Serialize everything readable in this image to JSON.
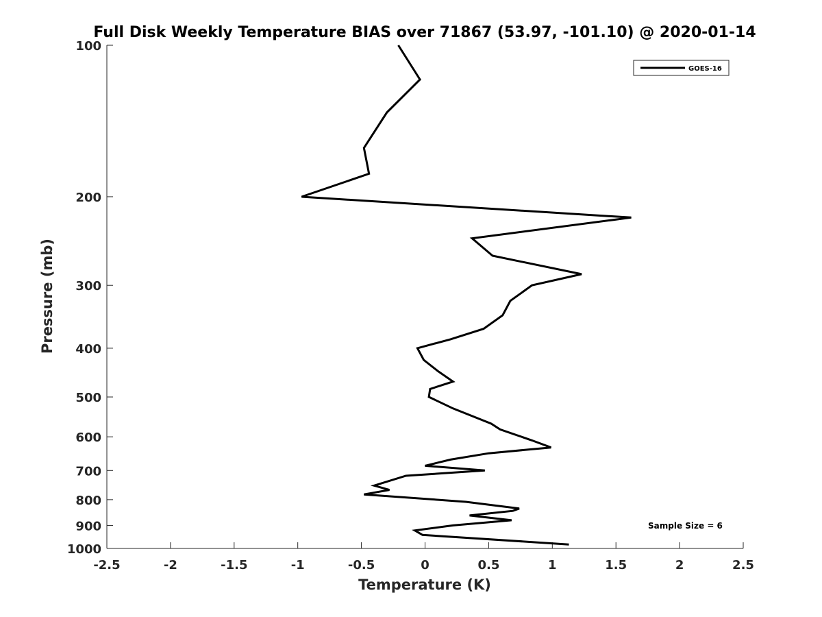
{
  "chart_data": {
    "type": "line",
    "title": "Full Disk Weekly Temperature BIAS over 71867 (53.97, -101.10) @ 2020-01-14",
    "xlabel": "Temperature (K)",
    "ylabel": "Pressure (mb)",
    "xlim": [
      -2.5,
      2.5
    ],
    "ylim": [
      100,
      1000
    ],
    "y_scale": "log",
    "y_reversed": true,
    "grid": false,
    "legend_position": "top-right",
    "x_ticks": [
      {
        "value": -2.5,
        "label": "-2.5"
      },
      {
        "value": -2,
        "label": "-2"
      },
      {
        "value": -1.5,
        "label": "-1.5"
      },
      {
        "value": -1,
        "label": "-1"
      },
      {
        "value": -0.5,
        "label": "-0.5"
      },
      {
        "value": 0,
        "label": "0"
      },
      {
        "value": 0.5,
        "label": "0.5"
      },
      {
        "value": 1,
        "label": "1"
      },
      {
        "value": 1.5,
        "label": "1.5"
      },
      {
        "value": 2,
        "label": "2"
      },
      {
        "value": 2.5,
        "label": "2.5"
      }
    ],
    "y_ticks": [
      {
        "value": 100,
        "label": "100"
      },
      {
        "value": 200,
        "label": "200"
      },
      {
        "value": 300,
        "label": "300"
      },
      {
        "value": 400,
        "label": "400"
      },
      {
        "value": 500,
        "label": "500"
      },
      {
        "value": 600,
        "label": "600"
      },
      {
        "value": 700,
        "label": "700"
      },
      {
        "value": 800,
        "label": "800"
      },
      {
        "value": 900,
        "label": "900"
      },
      {
        "value": 1000,
        "label": "1000"
      }
    ],
    "series": [
      {
        "name": "GOES-16",
        "color": "#000000",
        "points": [
          {
            "x": -0.21,
            "p": 100
          },
          {
            "x": -0.04,
            "p": 117
          },
          {
            "x": -0.3,
            "p": 136
          },
          {
            "x": -0.48,
            "p": 160
          },
          {
            "x": -0.44,
            "p": 180
          },
          {
            "x": -0.97,
            "p": 200
          },
          {
            "x": 1.62,
            "p": 220
          },
          {
            "x": 0.37,
            "p": 242
          },
          {
            "x": 0.53,
            "p": 262
          },
          {
            "x": 1.23,
            "p": 285
          },
          {
            "x": 0.84,
            "p": 300
          },
          {
            "x": 0.67,
            "p": 322
          },
          {
            "x": 0.61,
            "p": 344
          },
          {
            "x": 0.46,
            "p": 366
          },
          {
            "x": 0.2,
            "p": 384
          },
          {
            "x": -0.06,
            "p": 400
          },
          {
            "x": -0.01,
            "p": 422
          },
          {
            "x": 0.1,
            "p": 444
          },
          {
            "x": 0.22,
            "p": 466
          },
          {
            "x": 0.04,
            "p": 482
          },
          {
            "x": 0.03,
            "p": 500
          },
          {
            "x": 0.22,
            "p": 527
          },
          {
            "x": 0.52,
            "p": 565
          },
          {
            "x": 0.59,
            "p": 580
          },
          {
            "x": 0.84,
            "p": 610
          },
          {
            "x": 0.99,
            "p": 630
          },
          {
            "x": 0.5,
            "p": 647
          },
          {
            "x": 0.2,
            "p": 666
          },
          {
            "x": 0.0,
            "p": 685
          },
          {
            "x": 0.47,
            "p": 700
          },
          {
            "x": -0.15,
            "p": 717
          },
          {
            "x": -0.4,
            "p": 750
          },
          {
            "x": -0.28,
            "p": 765
          },
          {
            "x": -0.48,
            "p": 781
          },
          {
            "x": 0.32,
            "p": 808
          },
          {
            "x": 0.74,
            "p": 833
          },
          {
            "x": 0.69,
            "p": 842
          },
          {
            "x": 0.35,
            "p": 860
          },
          {
            "x": 0.68,
            "p": 879
          },
          {
            "x": 0.22,
            "p": 900
          },
          {
            "x": -0.08,
            "p": 921
          },
          {
            "x": -0.02,
            "p": 940
          },
          {
            "x": 1.13,
            "p": 982
          }
        ]
      }
    ],
    "legend": {
      "entries": [
        "GOES-16"
      ]
    },
    "annotations": [
      {
        "text": "Sample Size = 6"
      }
    ]
  }
}
